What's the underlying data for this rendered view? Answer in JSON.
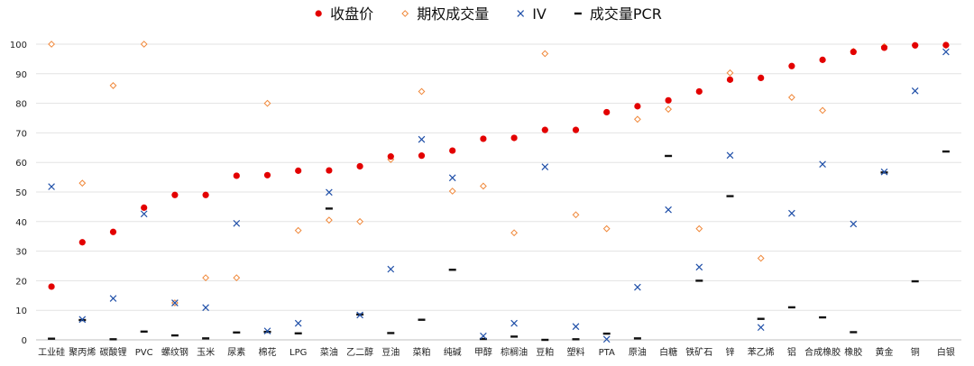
{
  "chart_data": {
    "type": "scatter",
    "ylim": [
      0,
      100
    ],
    "yticks": [
      0,
      10,
      20,
      30,
      40,
      50,
      60,
      70,
      80,
      90,
      100
    ],
    "grid": true,
    "legend_position": "top-center",
    "categories": [
      "工业硅",
      "聚丙烯",
      "碳酸锂",
      "PVC",
      "螺纹钢",
      "玉米",
      "尿素",
      "棉花",
      "LPG",
      "菜油",
      "乙二醇",
      "豆油",
      "菜粕",
      "纯碱",
      "甲醇",
      "棕榈油",
      "豆粕",
      "塑料",
      "PTA",
      "原油",
      "白糖",
      "铁矿石",
      "锌",
      "苯乙烯",
      "铝",
      "合成橡胶",
      "橡胶",
      "黄金",
      "铜",
      "白银"
    ],
    "series": [
      {
        "name": "收盘价",
        "marker": "dot",
        "color": "#e30000",
        "values": [
          18,
          33,
          36.5,
          44.7,
          49,
          49,
          55.5,
          55.7,
          57.2,
          57.3,
          58.7,
          62,
          62.3,
          64,
          68,
          68.3,
          71,
          71,
          77,
          79,
          81,
          84,
          88,
          88.6,
          92.6,
          94.7,
          97.4,
          98.8,
          99.6,
          99.7
        ]
      },
      {
        "name": "期权成交量",
        "marker": "diamond",
        "color": "#f0883a",
        "values": [
          100,
          53,
          86,
          100,
          12.5,
          21,
          21,
          80,
          37,
          40.5,
          40,
          61,
          84,
          50.3,
          52,
          36.2,
          96.8,
          42.3,
          37.6,
          74.6,
          78,
          37.6,
          90.3,
          27.6,
          82,
          77.6,
          97.6,
          99.2,
          99.6,
          99.6
        ]
      },
      {
        "name": "IV",
        "marker": "cross",
        "color": "#1f4fa8",
        "values": [
          51.8,
          6.9,
          14,
          42.6,
          12.5,
          10.9,
          39.4,
          3,
          5.6,
          49.9,
          8.4,
          23.9,
          67.8,
          54.8,
          1.3,
          5.6,
          58.5,
          4.5,
          0.2,
          17.8,
          44,
          24.6,
          62.4,
          4.2,
          42.8,
          59.4,
          39.2,
          56.8,
          84.2,
          97.4
        ]
      },
      {
        "name": "成交量PCR",
        "marker": "dash",
        "color": "#111111",
        "values": [
          0.4,
          6.7,
          0.2,
          2.8,
          1.5,
          0.5,
          2.5,
          2.7,
          2.2,
          44.4,
          8.6,
          2.3,
          6.8,
          23.7,
          0.3,
          1.1,
          0,
          0.2,
          2.1,
          0.5,
          62.2,
          20,
          48.6,
          7.1,
          11,
          7.6,
          2.6,
          56.6,
          19.8,
          63.7
        ]
      }
    ]
  }
}
